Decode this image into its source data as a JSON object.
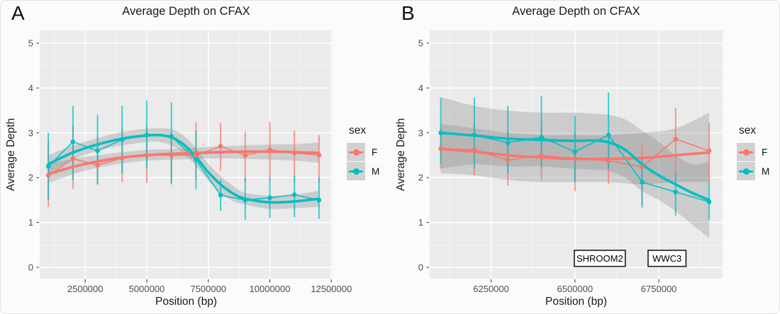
{
  "chart_data": [
    {
      "type": "line",
      "panel_label": "A",
      "title": "Average Depth on CFAX",
      "xlabel": "Position (bp)",
      "ylabel": "Average Depth",
      "grid": true,
      "legend_position": "right",
      "panel_background": "#EBEBEB",
      "ribbon_color": "#7F7F7F",
      "xlim": [
        650000,
        12550000
      ],
      "xticks": [
        2500000,
        5000000,
        7500000,
        10000000,
        12500000
      ],
      "xtick_labels": [
        "2500000",
        "5000000",
        "7500000",
        "10000000",
        "12500000"
      ],
      "ylim": [
        0,
        5
      ],
      "yticks": [
        0,
        1,
        2,
        3,
        4,
        5
      ],
      "ytick_labels": [
        "0",
        "1",
        "2",
        "3",
        "4",
        "5"
      ],
      "legend": {
        "title": "sex",
        "entries": [
          "F",
          "M"
        ]
      },
      "series": [
        {
          "name": "F",
          "color": "#F8766D",
          "points": {
            "x": [
              1000000,
              2000000,
              3000000,
              4000000,
              5000000,
              6000000,
              7000000,
              8000000,
              9000000,
              10000000,
              11000000,
              12000000
            ],
            "mean": [
              2.05,
              2.42,
              2.28,
              2.44,
              2.5,
              2.5,
              2.5,
              2.7,
              2.5,
              2.62,
              2.55,
              2.5
            ],
            "lo": [
              1.35,
              1.75,
              1.85,
              1.9,
              1.88,
              1.9,
              1.95,
              2.15,
              1.9,
              1.92,
              1.9,
              1.88
            ],
            "hi": [
              2.8,
              3.15,
              2.92,
              3.1,
              3.15,
              3.0,
              3.24,
              3.22,
              3.03,
              3.24,
              3.05,
              2.95
            ]
          },
          "smooth": {
            "x": [
              1000000,
              2000000,
              3000000,
              4000000,
              5000000,
              6000000,
              7000000,
              8000000,
              9000000,
              10000000,
              11000000,
              12000000
            ],
            "y": [
              2.08,
              2.24,
              2.36,
              2.45,
              2.5,
              2.53,
              2.55,
              2.57,
              2.58,
              2.58,
              2.57,
              2.55
            ],
            "lo": [
              1.88,
              2.08,
              2.22,
              2.32,
              2.38,
              2.4,
              2.42,
              2.43,
              2.42,
              2.4,
              2.38,
              2.33
            ],
            "hi": [
              2.3,
              2.42,
              2.5,
              2.57,
              2.62,
              2.64,
              2.67,
              2.7,
              2.72,
              2.74,
              2.75,
              2.78
            ]
          }
        },
        {
          "name": "M",
          "color": "#00BFC4",
          "points": {
            "x": [
              1000000,
              2000000,
              3000000,
              4000000,
              5000000,
              6000000,
              7000000,
              8000000,
              9000000,
              10000000,
              11000000,
              12000000
            ],
            "mean": [
              2.25,
              2.8,
              2.6,
              2.85,
              2.95,
              2.92,
              2.4,
              1.61,
              1.5,
              1.55,
              1.62,
              1.5
            ],
            "lo": [
              1.5,
              1.95,
              1.85,
              2.1,
              2.2,
              1.85,
              1.74,
              1.26,
              1.06,
              1.1,
              1.12,
              1.08
            ],
            "hi": [
              3.0,
              3.6,
              3.4,
              3.6,
              3.72,
              3.68,
              3.05,
              1.95,
              2.0,
              2.0,
              2.05,
              2.0
            ]
          },
          "smooth": {
            "x": [
              1000000,
              2000000,
              3000000,
              4000000,
              5000000,
              5500000,
              6000000,
              6500000,
              7000000,
              7500000,
              8000000,
              8500000,
              9000000,
              10000000,
              11000000,
              12000000
            ],
            "y": [
              2.3,
              2.56,
              2.74,
              2.87,
              2.94,
              2.95,
              2.9,
              2.74,
              2.46,
              2.12,
              1.85,
              1.65,
              1.53,
              1.45,
              1.47,
              1.53
            ],
            "lo": [
              2.1,
              2.4,
              2.6,
              2.72,
              2.79,
              2.8,
              2.72,
              2.54,
              2.26,
              1.93,
              1.66,
              1.48,
              1.4,
              1.3,
              1.32,
              1.35
            ],
            "hi": [
              2.5,
              2.72,
              2.88,
              3.02,
              3.09,
              3.1,
              3.08,
              2.94,
              2.66,
              2.31,
              2.04,
              1.82,
              1.66,
              1.6,
              1.62,
              1.71
            ]
          }
        }
      ],
      "gene_labels": []
    },
    {
      "type": "line",
      "panel_label": "B",
      "title": "Average Depth on CFAX",
      "xlabel": "Position (bp)",
      "ylabel": "Average Depth",
      "grid": true,
      "legend_position": "right",
      "panel_background": "#EBEBEB",
      "ribbon_color": "#7F7F7F",
      "xlim": [
        6067000,
        6940000
      ],
      "xticks": [
        6250000,
        6500000,
        6750000
      ],
      "xtick_labels": [
        "6250000",
        "6500000",
        "6750000"
      ],
      "ylim": [
        0,
        5
      ],
      "yticks": [
        0,
        1,
        2,
        3,
        4,
        5
      ],
      "ytick_labels": [
        "0",
        "1",
        "2",
        "3",
        "4",
        "5"
      ],
      "legend": {
        "title": "sex",
        "entries": [
          "F",
          "M"
        ]
      },
      "series": [
        {
          "name": "F",
          "color": "#F8766D",
          "points": {
            "x": [
              6100000,
              6200000,
              6300000,
              6400000,
              6500000,
              6600000,
              6700000,
              6800000,
              6900000
            ],
            "mean": [
              2.65,
              2.62,
              2.39,
              2.5,
              2.42,
              2.38,
              2.24,
              2.86,
              2.6
            ],
            "lo": [
              2.2,
              2.05,
              1.82,
              1.95,
              1.7,
              1.85,
              1.38,
              2.1,
              1.9
            ],
            "hi": [
              3.1,
              3.2,
              3.04,
              3.22,
              3.0,
              2.9,
              2.75,
              3.56,
              3.22
            ]
          },
          "smooth": {
            "x": [
              6100000,
              6200000,
              6300000,
              6400000,
              6500000,
              6600000,
              6700000,
              6800000,
              6900000
            ],
            "y": [
              2.64,
              2.58,
              2.5,
              2.45,
              2.42,
              2.42,
              2.44,
              2.5,
              2.56
            ],
            "lo": [
              2.1,
              2.05,
              1.95,
              1.9,
              1.9,
              1.9,
              1.85,
              1.9,
              1.9
            ],
            "hi": [
              3.2,
              3.1,
              3.0,
              2.95,
              2.95,
              2.95,
              3.0,
              3.1,
              3.45
            ]
          }
        },
        {
          "name": "M",
          "color": "#00BFC4",
          "points": {
            "x": [
              6100000,
              6200000,
              6300000,
              6400000,
              6500000,
              6600000,
              6700000,
              6800000,
              6900000
            ],
            "mean": [
              3.0,
              2.95,
              2.78,
              2.9,
              2.58,
              2.95,
              1.9,
              1.68,
              1.46
            ],
            "lo": [
              2.3,
              2.2,
              2.1,
              2.2,
              1.9,
              2.2,
              1.33,
              1.15,
              1.06
            ],
            "hi": [
              3.78,
              3.78,
              3.6,
              3.82,
              3.38,
              3.9,
              2.4,
              2.1,
              1.9
            ]
          },
          "smooth": {
            "x": [
              6100000,
              6200000,
              6300000,
              6400000,
              6500000,
              6550000,
              6600000,
              6650000,
              6700000,
              6750000,
              6800000,
              6850000,
              6900000
            ],
            "y": [
              3.0,
              2.94,
              2.87,
              2.84,
              2.82,
              2.83,
              2.79,
              2.62,
              2.3,
              2.05,
              1.85,
              1.66,
              1.5
            ],
            "lo": [
              2.2,
              2.3,
              2.25,
              2.25,
              2.2,
              2.18,
              2.15,
              2.0,
              1.7,
              1.5,
              1.25,
              0.95,
              0.65
            ],
            "hi": [
              3.8,
              3.6,
              3.5,
              3.45,
              3.45,
              3.43,
              3.4,
              3.3,
              3.05,
              2.8,
              2.5,
              2.3,
              2.35
            ]
          }
        }
      ],
      "gene_labels": [
        {
          "label": "SHROOM2",
          "start": 6498000,
          "end": 6650000,
          "y_bottom": 0.02,
          "y_top": 0.38
        },
        {
          "label": "WWC3",
          "start": 6718000,
          "end": 6831000,
          "y_bottom": 0.02,
          "y_top": 0.38
        }
      ]
    }
  ]
}
